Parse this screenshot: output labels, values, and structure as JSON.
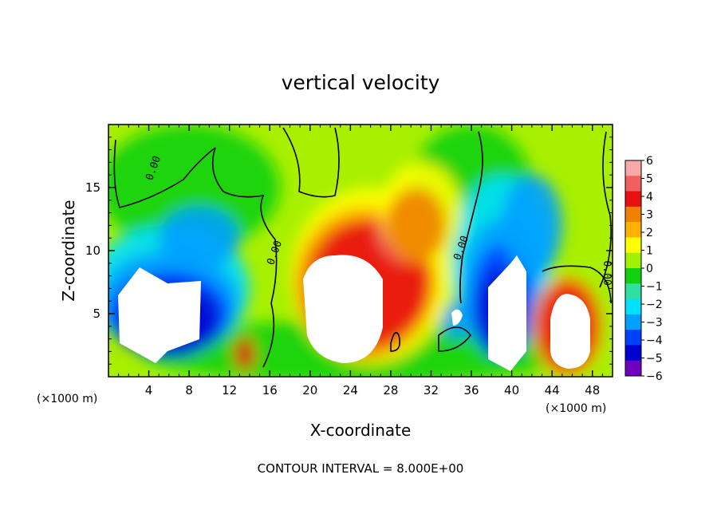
{
  "chart_data": {
    "type": "heatmap",
    "title": "vertical velocity",
    "xlabel": "X-coordinate",
    "ylabel": "Z-coordinate",
    "x_unit_left": "(×1000 m)",
    "x_unit_right": "(×1000 m)",
    "footer": "CONTOUR INTERVAL = 8.000E+00",
    "xlim": [
      0,
      50
    ],
    "ylim": [
      0,
      20
    ],
    "x_ticks": [
      4,
      8,
      12,
      16,
      20,
      24,
      28,
      32,
      36,
      40,
      44,
      48
    ],
    "x_tick_labels": [
      "4",
      "8",
      "12",
      "16",
      "20",
      "24",
      "28",
      "32",
      "36",
      "40",
      "44",
      "48"
    ],
    "y_ticks": [
      5,
      10,
      15
    ],
    "y_tick_labels": [
      "5",
      "10",
      "15"
    ],
    "colorbar": {
      "range": [
        -6,
        6
      ],
      "tick_labels": [
        "6",
        "5",
        "4",
        "3",
        "2",
        "1",
        "0",
        "−1",
        "−2",
        "−3",
        "−4",
        "−5",
        "−6"
      ],
      "colors": [
        "#f7a8a8",
        "#f06060",
        "#e81010",
        "#f08000",
        "#ffb000",
        "#ffff00",
        "#a0f000",
        "#10d010",
        "#30e0a0",
        "#00e0ff",
        "#00a0ff",
        "#0040ff",
        "#0000d0",
        "#7000c0"
      ]
    },
    "contour_labels": [
      "0.00",
      "0.00",
      "0.00",
      "0.00"
    ],
    "features": [
      {
        "kind": "updraft",
        "x": 23.5,
        "z": 5.5,
        "peak": 6
      },
      {
        "kind": "updraft",
        "x": 29.5,
        "z": 11.5,
        "peak": 4.5
      },
      {
        "kind": "updraft",
        "x": 45.5,
        "z": 4.0,
        "peak": 6
      },
      {
        "kind": "updraft",
        "x": 13.5,
        "z": 1.8,
        "peak": 5
      },
      {
        "kind": "downdraft",
        "x": 6.0,
        "z": 4.5,
        "peak": -6
      },
      {
        "kind": "downdraft",
        "x": 39.0,
        "z": 5.0,
        "peak": -6
      },
      {
        "kind": "downdraft",
        "x": 34.5,
        "z": 4.5,
        "peak": -4.5
      }
    ]
  }
}
